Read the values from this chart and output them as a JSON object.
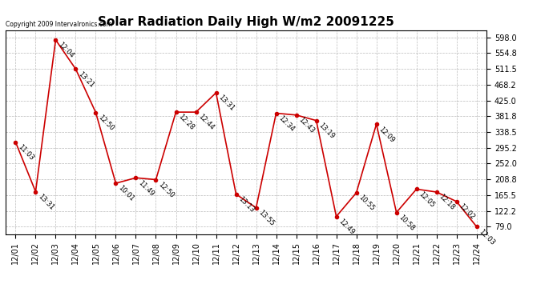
{
  "title": "Solar Radiation Daily High W/m2 20091225",
  "copyright": "Copyright 2009 Intervalronics.com",
  "dates": [
    "12/01",
    "12/02",
    "12/03",
    "12/04",
    "12/05",
    "12/06",
    "12/07",
    "12/08",
    "12/09",
    "12/10",
    "12/11",
    "12/12",
    "12/13",
    "12/14",
    "12/15",
    "12/16",
    "12/17",
    "12/18",
    "12/19",
    "12/20",
    "12/21",
    "12/22",
    "12/23",
    "12/24"
  ],
  "values": [
    311,
    175,
    591,
    511,
    392,
    198,
    213,
    208,
    393,
    393,
    446,
    168,
    131,
    390,
    385,
    370,
    107,
    172,
    360,
    118,
    182,
    174,
    148,
    79
  ],
  "times": [
    "11:03",
    "13:31",
    "12:04",
    "13:21",
    "12:50",
    "10:01",
    "11:49",
    "12:50",
    "12:28",
    "12:44",
    "13:31",
    "13:13",
    "13:55",
    "12:34",
    "12:43",
    "13:19",
    "12:49",
    "10:55",
    "12:09",
    "10:58",
    "12:05",
    "12:18",
    "12:02",
    "12:03"
  ],
  "line_color": "#cc0000",
  "marker_color": "#cc0000",
  "bg_color": "#ffffff",
  "grid_color": "#bbbbbb",
  "yticks": [
    79.0,
    122.2,
    165.5,
    208.8,
    252.0,
    295.2,
    338.5,
    381.8,
    425.0,
    468.2,
    511.5,
    554.8,
    598.0
  ],
  "ylim": [
    59,
    618
  ],
  "title_fontsize": 11,
  "annotation_fontsize": 6.0,
  "tick_fontsize": 7,
  "copyright_fontsize": 5.5
}
